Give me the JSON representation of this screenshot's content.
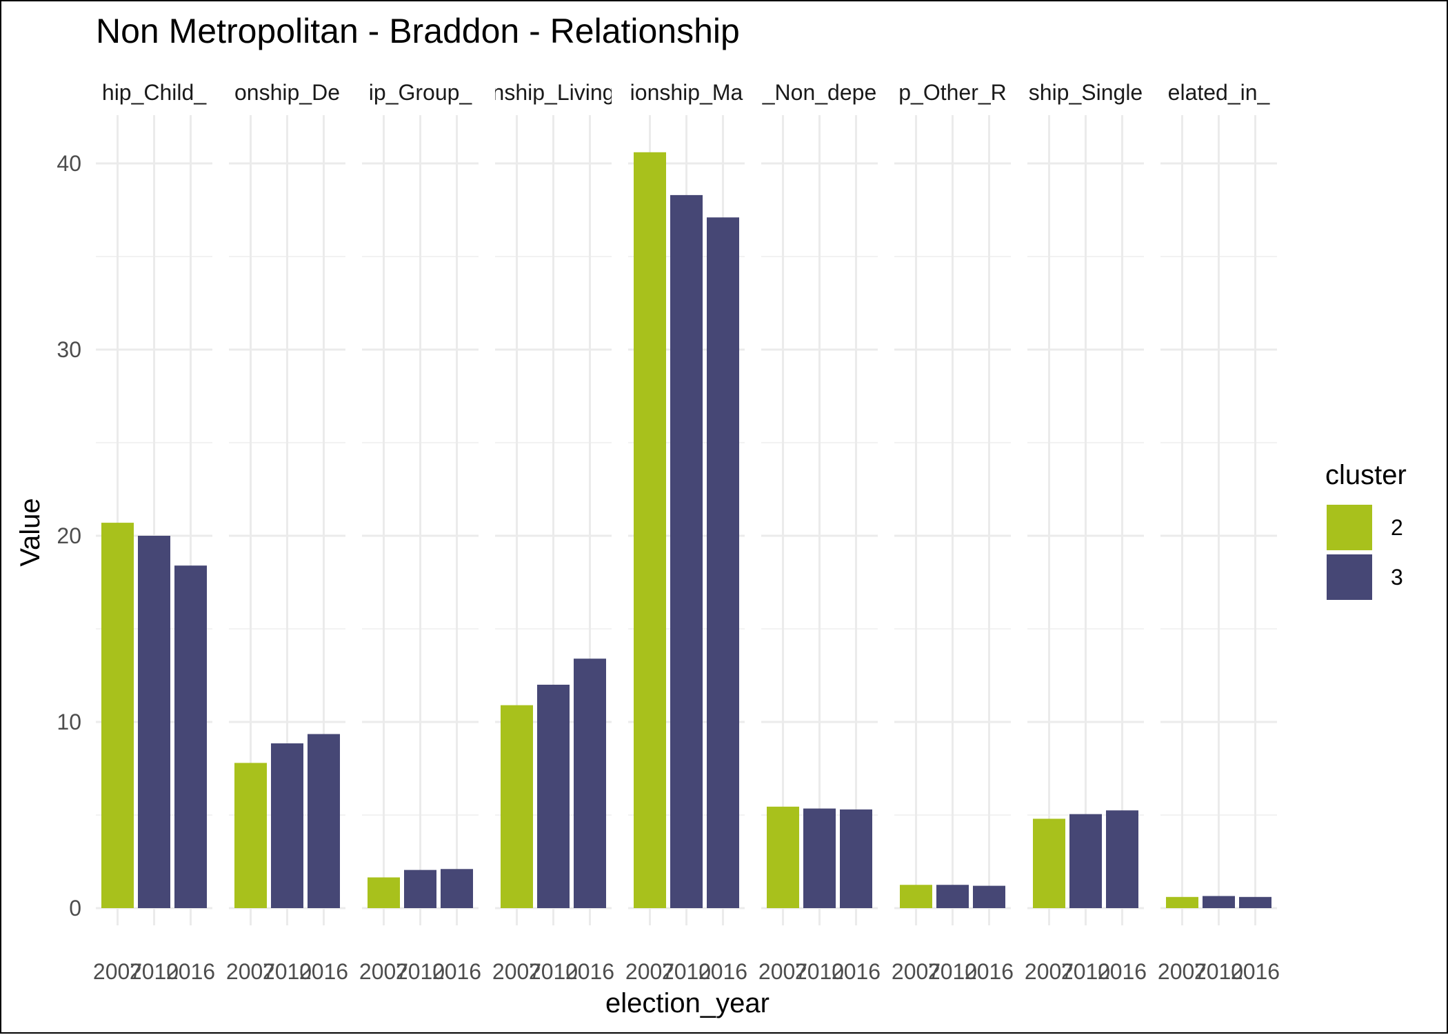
{
  "chart_data": {
    "type": "bar",
    "title": "Non Metropolitan - Braddon - Relationship",
    "xlabel": "election_year",
    "ylabel": "Value",
    "ylim": [
      0,
      42
    ],
    "yticks": [
      0,
      10,
      20,
      30,
      40
    ],
    "grid": true,
    "legend": {
      "title": "cluster",
      "position": "right"
    },
    "clusters": [
      {
        "name": "2",
        "color": "#a8c11c"
      },
      {
        "name": "3",
        "color": "#464775"
      }
    ],
    "x": [
      "2007",
      "2010",
      "2016"
    ],
    "x_tick_labels": [
      "2007",
      "2010",
      "2016"
    ],
    "bar_clusters": [
      "2",
      "3",
      "3"
    ],
    "facets": [
      {
        "label": "hip_Child_",
        "values": [
          20.7,
          20.0,
          18.4
        ]
      },
      {
        "label": "onship_De",
        "values": [
          7.8,
          8.85,
          9.35
        ]
      },
      {
        "label": "ip_Group_",
        "values": [
          1.65,
          2.05,
          2.1
        ]
      },
      {
        "label": "nship_Living",
        "values": [
          10.9,
          12.0,
          13.4
        ]
      },
      {
        "label": "ionship_Ma",
        "values": [
          40.6,
          38.3,
          37.1
        ]
      },
      {
        "label": "_Non_depe",
        "values": [
          5.45,
          5.35,
          5.3
        ]
      },
      {
        "label": "p_Other_R",
        "values": [
          1.25,
          1.25,
          1.2
        ]
      },
      {
        "label": "ship_Single",
        "values": [
          4.8,
          5.05,
          5.25
        ]
      },
      {
        "label": "elated_in_",
        "values": [
          0.6,
          0.65,
          0.6
        ]
      }
    ]
  }
}
